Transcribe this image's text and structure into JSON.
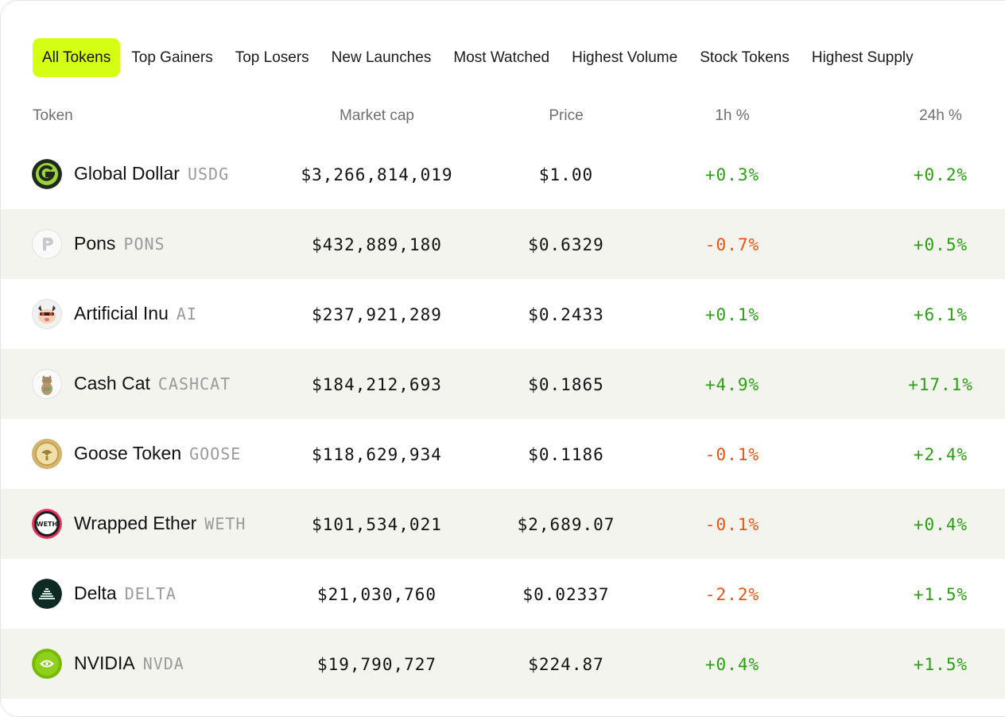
{
  "tabs": [
    "All Tokens",
    "Top Gainers",
    "Top Losers",
    "New Launches",
    "Most Watched",
    "Highest Volume",
    "Stock Tokens",
    "Highest Supply"
  ],
  "active_tab": "All Tokens",
  "columns": {
    "token": "Token",
    "market_cap": "Market cap",
    "price": "Price",
    "h1": "1h %",
    "h24": "24h %"
  },
  "colors": {
    "accent": "#d4ff14",
    "positive": "#2aa112",
    "negative": "#f0530f",
    "row_alt": "#f4f4ef"
  },
  "rows": [
    {
      "name": "Global Dollar",
      "symbol": "USDG",
      "market_cap": "$3,266,814,019",
      "price": "$1.00",
      "h1": "+0.3%",
      "h24": "+0.2%",
      "icon": "global-dollar-logo-icon"
    },
    {
      "name": "Pons",
      "symbol": "PONS",
      "market_cap": "$432,889,180",
      "price": "$0.6329",
      "h1": "-0.7%",
      "h24": "+0.5%",
      "icon": "pons-logo-icon"
    },
    {
      "name": "Artificial Inu",
      "symbol": "AI",
      "market_cap": "$237,921,289",
      "price": "$0.2433",
      "h1": "+0.1%",
      "h24": "+6.1%",
      "icon": "artificial-inu-logo-icon"
    },
    {
      "name": "Cash Cat",
      "symbol": "CASHCAT",
      "market_cap": "$184,212,693",
      "price": "$0.1865",
      "h1": "+4.9%",
      "h24": "+17.1%",
      "icon": "cash-cat-logo-icon"
    },
    {
      "name": "Goose Token",
      "symbol": "GOOSE",
      "market_cap": "$118,629,934",
      "price": "$0.1186",
      "h1": "-0.1%",
      "h24": "+2.4%",
      "icon": "goose-token-logo-icon"
    },
    {
      "name": "Wrapped Ether",
      "symbol": "WETH",
      "market_cap": "$101,534,021",
      "price": "$2,689.07",
      "h1": "-0.1%",
      "h24": "+0.4%",
      "icon": "weth-logo-icon"
    },
    {
      "name": "Delta",
      "symbol": "DELTA",
      "market_cap": "$21,030,760",
      "price": "$0.02337",
      "h1": "-2.2%",
      "h24": "+1.5%",
      "icon": "delta-logo-icon"
    },
    {
      "name": "NVIDIA",
      "symbol": "NVDA",
      "market_cap": "$19,790,727",
      "price": "$224.87",
      "h1": "+0.4%",
      "h24": "+1.5%",
      "icon": "nvidia-logo-icon"
    }
  ],
  "weth_logo_text": "WETH"
}
